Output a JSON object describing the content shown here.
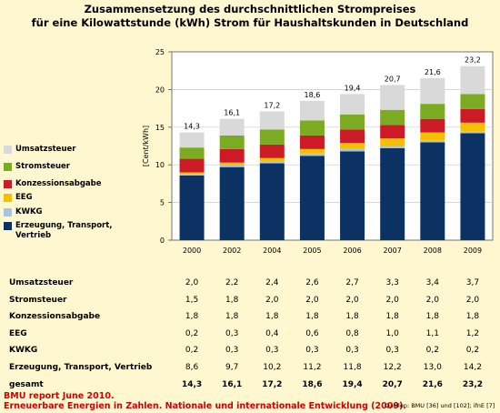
{
  "title_line1": "Zusammensetzung des durchschnittlichen Strompreises",
  "title_line2": "für eine Kilowattstunde (kWh) Strom für Haushaltskunden in Deutschland",
  "chart_data": {
    "type": "bar",
    "stacked": true,
    "categories": [
      "2000",
      "2002",
      "2004",
      "2005",
      "2006",
      "2007",
      "2008",
      "2009"
    ],
    "ylabel": "[Cent/kWh]",
    "ylim": [
      0,
      25
    ],
    "yticks": [
      0,
      5,
      10,
      15,
      20,
      25
    ],
    "grid": true,
    "legend_position": "left",
    "series": [
      {
        "name": "Erzeugung, Transport, Vertrieb",
        "color": "#0c3163",
        "values": [
          8.6,
          9.7,
          10.2,
          11.2,
          11.8,
          12.2,
          13.0,
          14.2
        ]
      },
      {
        "name": "KWKG",
        "color": "#a8c4e2",
        "values": [
          0.2,
          0.3,
          0.3,
          0.3,
          0.3,
          0.3,
          0.2,
          0.2
        ]
      },
      {
        "name": "EEG",
        "color": "#f6c000",
        "values": [
          0.2,
          0.3,
          0.4,
          0.6,
          0.8,
          1.0,
          1.1,
          1.2
        ]
      },
      {
        "name": "Konzessionsabgabe",
        "color": "#cc1a26",
        "values": [
          1.8,
          1.8,
          1.8,
          1.8,
          1.8,
          1.8,
          1.8,
          1.8
        ]
      },
      {
        "name": "Stromsteuer",
        "color": "#7aab22",
        "values": [
          1.5,
          1.8,
          2.0,
          2.0,
          2.0,
          2.0,
          2.0,
          2.0
        ]
      },
      {
        "name": "Umsatzsteuer",
        "color": "#d9d9d9",
        "values": [
          2.0,
          2.2,
          2.4,
          2.6,
          2.7,
          3.3,
          3.4,
          3.7
        ]
      }
    ],
    "totals": [
      "14,3",
      "16,1",
      "17,2",
      "18,6",
      "19,4",
      "20,7",
      "21,6",
      "23,2"
    ]
  },
  "legend": [
    {
      "label": "Umsatzsteuer",
      "color": "#d9d9d9"
    },
    {
      "label": "Stromsteuer",
      "color": "#7aab22"
    },
    {
      "label": "Konzessionsabgabe",
      "color": "#cc1a26"
    },
    {
      "label": "EEG",
      "color": "#f6c000"
    },
    {
      "label": "KWKG",
      "color": "#a8c4e2"
    },
    {
      "label": "Erzeugung, Transport,\nVertrieb",
      "color": "#0c3163"
    }
  ],
  "table": {
    "rows": [
      {
        "label": "Umsatzsteuer",
        "values": [
          "2,0",
          "2,2",
          "2,4",
          "2,6",
          "2,7",
          "3,3",
          "3,4",
          "3,7"
        ]
      },
      {
        "label": "Stromsteuer",
        "values": [
          "1,5",
          "1,8",
          "2,0",
          "2,0",
          "2,0",
          "2,0",
          "2,0",
          "2,0"
        ]
      },
      {
        "label": "Konzessionsabgabe",
        "values": [
          "1,8",
          "1,8",
          "1,8",
          "1,8",
          "1,8",
          "1,8",
          "1,8",
          "1,8"
        ]
      },
      {
        "label": "EEG",
        "values": [
          "0,2",
          "0,3",
          "0,4",
          "0,6",
          "0,8",
          "1,0",
          "1,1",
          "1,2"
        ]
      },
      {
        "label": "KWKG",
        "values": [
          "0,2",
          "0,3",
          "0,3",
          "0,3",
          "0,3",
          "0,3",
          "0,2",
          "0,2"
        ]
      },
      {
        "label": "Erzeugung, Transport, Vertrieb",
        "values": [
          "8,6",
          "9,7",
          "10,2",
          "11,2",
          "11,8",
          "12,2",
          "13,0",
          "14,2"
        ]
      }
    ],
    "total_row": {
      "label": "gesamt",
      "values": [
        "14,3",
        "16,1",
        "17,2",
        "18,6",
        "19,4",
        "20,7",
        "21,6",
        "23,2"
      ]
    }
  },
  "footer": {
    "line1": "BMU report June 2010.",
    "line2": "Erneuerbare Energien in Zahlen. Nationale und internationale Entwicklung (2009).",
    "sources": "Quellen: BMU [36] und [102]; ifnE [7]"
  },
  "colors": {
    "background": "#fff7cf",
    "grid": "#c8c8c8",
    "axis": "#555555",
    "footer_text": "#d40000"
  }
}
